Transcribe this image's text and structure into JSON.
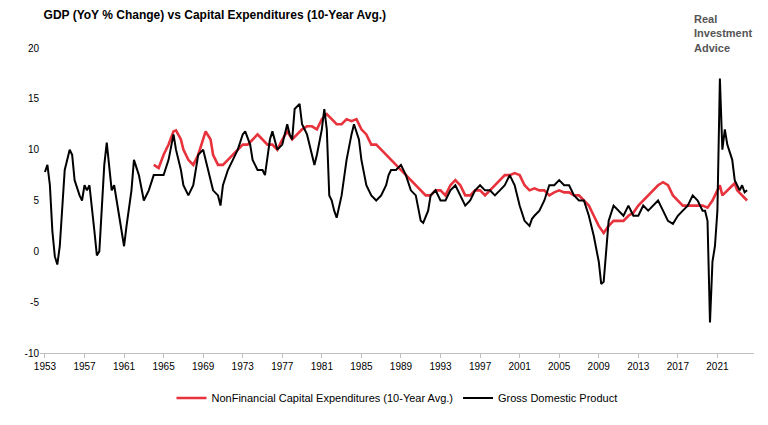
{
  "chart_data": {
    "type": "line",
    "title": "GDP (YoY % Change) vs Capital Expenditures (10-Year Avg.)",
    "annotations": [
      {
        "text": "Real Investment Advice"
      }
    ],
    "xlim": [
      1952.5,
      2024.7
    ],
    "xticks": [
      1953,
      1957,
      1961,
      1965,
      1969,
      1973,
      1977,
      1981,
      1985,
      1989,
      1993,
      1997,
      2001,
      2005,
      2009,
      2013,
      2017,
      2021
    ],
    "ylim": [
      -10,
      20
    ],
    "yticks": [
      -10,
      -5,
      0,
      5,
      10,
      15,
      20
    ],
    "grid": false,
    "legend": "bottom",
    "series": [
      {
        "name": "NonFinancial Capital Expenditures (10-Year Avg.)",
        "color": "#e8323c",
        "x": [
          1964.0,
          1964.5,
          1965.0,
          1965.5,
          1966.0,
          1966.25,
          1966.75,
          1967.0,
          1967.5,
          1968.0,
          1968.5,
          1969.0,
          1969.25,
          1969.75,
          1970.0,
          1970.5,
          1971.0,
          1971.5,
          1972.0,
          1972.5,
          1973.0,
          1973.5,
          1974.0,
          1974.5,
          1975.0,
          1975.5,
          1976.0,
          1976.5,
          1977.0,
          1977.5,
          1978.0,
          1978.5,
          1979.0,
          1979.5,
          1980.0,
          1980.5,
          1981.0,
          1981.5,
          1982.0,
          1982.5,
          1983.0,
          1983.5,
          1984.0,
          1984.5,
          1985.0,
          1985.5,
          1986.0,
          1986.5,
          1987.0,
          1987.5,
          1988.0,
          1988.5,
          1989.0,
          1989.5,
          1990.0,
          1990.5,
          1991.0,
          1991.5,
          1992.0,
          1992.5,
          1993.0,
          1993.5,
          1994.0,
          1994.5,
          1995.0,
          1995.5,
          1996.0,
          1996.5,
          1997.0,
          1997.5,
          1998.0,
          1998.5,
          1999.0,
          1999.5,
          2000.0,
          2000.5,
          2001.0,
          2001.5,
          2002.0,
          2002.5,
          2003.0,
          2003.5,
          2004.0,
          2004.5,
          2005.0,
          2005.5,
          2006.0,
          2006.5,
          2007.0,
          2007.5,
          2008.0,
          2008.5,
          2009.0,
          2009.5,
          2010.0,
          2010.5,
          2011.0,
          2011.5,
          2012.0,
          2012.5,
          2013.0,
          2013.5,
          2014.0,
          2014.5,
          2015.0,
          2015.5,
          2016.0,
          2016.5,
          2017.0,
          2017.5,
          2018.0,
          2018.5,
          2019.0,
          2019.5,
          2020.0,
          2020.5,
          2021.0,
          2021.25,
          2021.5,
          2022.0,
          2022.5,
          2022.75,
          2023.0,
          2023.5,
          2024.0
        ],
        "values": [
          8.5,
          8.2,
          9.5,
          10.5,
          11.8,
          11.9,
          11,
          10,
          9,
          8.5,
          9.5,
          11,
          11.8,
          11,
          9.5,
          8.5,
          8.5,
          9,
          9.5,
          10,
          10.5,
          10.5,
          11,
          11.5,
          11,
          10.5,
          10.5,
          10,
          11,
          11.8,
          11,
          11.5,
          12,
          12.3,
          12.3,
          12,
          13,
          13.5,
          13,
          12.5,
          12.5,
          13,
          12.8,
          13,
          12,
          11.5,
          10.5,
          10.5,
          10,
          9.5,
          9,
          8.5,
          8,
          7.5,
          7,
          6.5,
          6,
          5.5,
          5.5,
          6,
          6,
          5.5,
          6.5,
          7,
          6.5,
          5.5,
          5.5,
          6,
          6,
          5.5,
          6,
          6.5,
          7,
          7.5,
          7.5,
          7.7,
          7.5,
          6.5,
          6,
          6.2,
          6,
          6,
          5.5,
          5.8,
          6,
          5.8,
          5.8,
          5.5,
          5.5,
          5,
          4.5,
          3.5,
          2.5,
          1.8,
          2.5,
          3,
          3,
          3,
          3.5,
          3.8,
          4.5,
          5,
          5.5,
          6,
          6.5,
          6.8,
          6.5,
          5.5,
          5,
          4.5,
          4.5,
          4.5,
          4.5,
          4.5,
          4.3,
          5,
          6,
          6.5,
          5.5,
          6,
          6.5,
          6.7,
          6,
          5.5,
          5
        ]
      },
      {
        "name": "Gross Domestic Product",
        "color": "#000000",
        "x": [
          1953.0,
          1953.25,
          1953.5,
          1953.75,
          1954.0,
          1954.25,
          1954.5,
          1954.75,
          1955.0,
          1955.5,
          1955.75,
          1956.0,
          1956.5,
          1956.75,
          1957.0,
          1957.25,
          1957.5,
          1958.0,
          1958.25,
          1958.5,
          1958.75,
          1959.0,
          1959.25,
          1959.5,
          1959.75,
          1960.0,
          1960.5,
          1961.0,
          1961.25,
          1961.75,
          1962.0,
          1962.5,
          1963.0,
          1963.5,
          1964.0,
          1964.5,
          1965.0,
          1965.5,
          1966.0,
          1966.25,
          1966.75,
          1967.0,
          1967.5,
          1968.0,
          1968.5,
          1969.0,
          1969.5,
          1970.0,
          1970.5,
          1970.75,
          1971.0,
          1971.5,
          1972.0,
          1972.5,
          1973.0,
          1973.25,
          1973.75,
          1974.0,
          1974.5,
          1975.0,
          1975.25,
          1975.75,
          1976.0,
          1976.5,
          1977.0,
          1977.5,
          1977.75,
          1978.0,
          1978.25,
          1978.75,
          1979.0,
          1979.5,
          1980.0,
          1980.25,
          1980.5,
          1981.0,
          1981.25,
          1981.5,
          1981.75,
          1982.0,
          1982.25,
          1982.5,
          1983.0,
          1983.5,
          1984.0,
          1984.25,
          1984.75,
          1985.0,
          1985.5,
          1986.0,
          1986.5,
          1987.0,
          1987.5,
          1987.75,
          1988.0,
          1988.5,
          1989.0,
          1989.5,
          1990.0,
          1990.5,
          1991.0,
          1991.25,
          1991.75,
          1992.0,
          1992.5,
          1993.0,
          1993.5,
          1994.0,
          1994.5,
          1995.0,
          1995.5,
          1996.0,
          1996.5,
          1997.0,
          1997.5,
          1998.0,
          1998.5,
          1999.0,
          1999.5,
          2000.0,
          2000.5,
          2001.0,
          2001.5,
          2002.0,
          2002.25,
          2002.5,
          2003.0,
          2003.5,
          2004.0,
          2004.5,
          2005.0,
          2005.5,
          2006.0,
          2006.5,
          2007.0,
          2007.5,
          2008.0,
          2008.5,
          2009.0,
          2009.25,
          2009.5,
          2009.75,
          2010.0,
          2010.5,
          2011.0,
          2011.5,
          2012.0,
          2012.5,
          2013.0,
          2013.5,
          2014.0,
          2014.5,
          2015.0,
          2015.5,
          2016.0,
          2016.5,
          2017.0,
          2017.5,
          2018.0,
          2018.5,
          2019.0,
          2019.5,
          2019.75,
          2020.0,
          2020.25,
          2020.5,
          2020.75,
          2021.0,
          2021.25,
          2021.5,
          2021.75,
          2022.0,
          2022.5,
          2022.75,
          2023.0,
          2023.25,
          2023.5,
          2023.75,
          2024.0
        ],
        "values": [
          7.8,
          8.5,
          6.5,
          2,
          -0.5,
          -1.3,
          0.5,
          4,
          8,
          10,
          9.5,
          7,
          5.5,
          5,
          6.5,
          6,
          6.5,
          2,
          -0.4,
          0,
          4,
          8.5,
          10.7,
          8,
          6,
          6.5,
          3.5,
          0.5,
          2.5,
          6,
          9,
          7.5,
          5,
          6,
          7.5,
          7.5,
          7.5,
          9,
          11.5,
          10,
          8,
          6.5,
          5.5,
          6.5,
          9.5,
          10,
          8,
          6,
          5.5,
          4.5,
          6.5,
          8,
          9,
          10,
          11.5,
          11.8,
          10.5,
          9,
          8,
          8,
          7.5,
          11,
          11.8,
          10,
          10.5,
          12.5,
          11.5,
          11,
          14,
          14.5,
          12.5,
          11.5,
          9.5,
          8.5,
          9.5,
          12,
          14,
          12,
          5.5,
          5,
          4,
          3.3,
          5.5,
          9,
          11.5,
          12.5,
          11,
          9,
          6.5,
          5.5,
          5,
          5.5,
          6.5,
          7.5,
          8,
          8,
          8.5,
          7.5,
          6,
          5.5,
          3,
          2.8,
          4,
          5.5,
          6,
          5,
          5,
          6,
          6.5,
          5.5,
          4.5,
          5,
          6,
          6.5,
          6,
          6,
          5.5,
          6,
          6.5,
          7.5,
          6.5,
          4.5,
          3,
          2.5,
          3.2,
          3.5,
          4,
          5,
          6.5,
          6.5,
          7,
          6.5,
          6.5,
          5.5,
          5,
          5,
          3.5,
          1.5,
          -1,
          -3.2,
          -3,
          0,
          3,
          4.5,
          4,
          3.5,
          4.5,
          3.5,
          3.5,
          4.5,
          4,
          4.5,
          5,
          4,
          3,
          2.7,
          3.5,
          4,
          4.5,
          5.5,
          5,
          4,
          4,
          3,
          -7,
          -1,
          0.5,
          4,
          17,
          10,
          12,
          10.5,
          9,
          7,
          6.5,
          6,
          6.5,
          5.8,
          6
        ]
      }
    ]
  }
}
